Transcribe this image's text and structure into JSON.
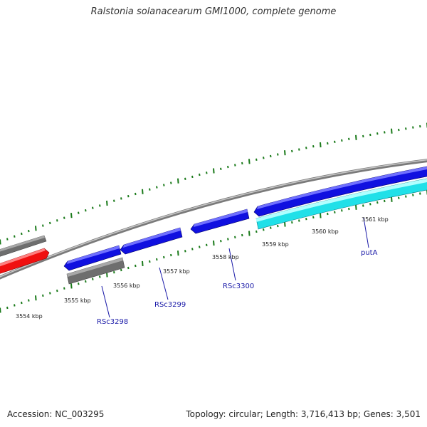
{
  "title": "Ralstonia solanacearum GMI1000, complete genome",
  "accession": "Accession: NC_003295",
  "footer_info": "Topology: circular; Length: 3,716,413 bp; Genes: 3,501",
  "colors": {
    "backbone": "#808080",
    "tick": "#1a7a1a",
    "gene_blue": "#1010e0",
    "gene_cyan": "#20e0e8",
    "gene_red": "#f01010",
    "gene_gray": "#6e6e6e",
    "label": "#1a1aa8"
  },
  "kbp_labels": [
    "3554 kbp",
    "3555 kbp",
    "3556 kbp",
    "3557 kbp",
    "3558 kbp",
    "3559 kbp",
    "3560 kbp",
    "3561 kbp"
  ],
  "genes": [
    {
      "name": "RSc3298",
      "color": "gene_blue",
      "strand": "+"
    },
    {
      "name": "RSc3299",
      "color": "gene_blue",
      "strand": "+"
    },
    {
      "name": "RSc3300",
      "color": "gene_blue",
      "strand": "-"
    },
    {
      "name": "putA",
      "color": "gene_cyan",
      "strand": "+"
    }
  ],
  "other_features": [
    {
      "color": "gene_blue",
      "strand": "-"
    },
    {
      "color": "gene_red",
      "strand": "+"
    },
    {
      "color": "gene_gray",
      "strand": "+"
    },
    {
      "color": "gene_gray",
      "strand": "+"
    }
  ]
}
